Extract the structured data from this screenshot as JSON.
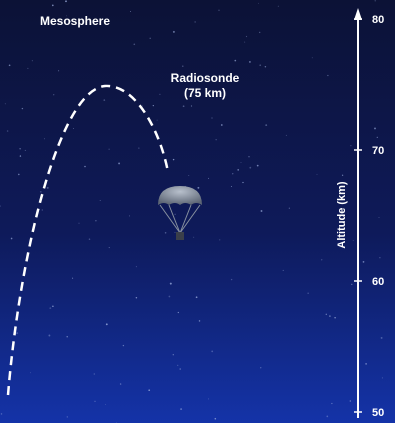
{
  "region_label": "Mesosphere",
  "annotation": {
    "title": "Radiosonde",
    "subtitle": "(75 km)"
  },
  "axis": {
    "label": "Altitude (km)",
    "ticks": [
      50,
      60,
      70,
      80
    ]
  }
}
